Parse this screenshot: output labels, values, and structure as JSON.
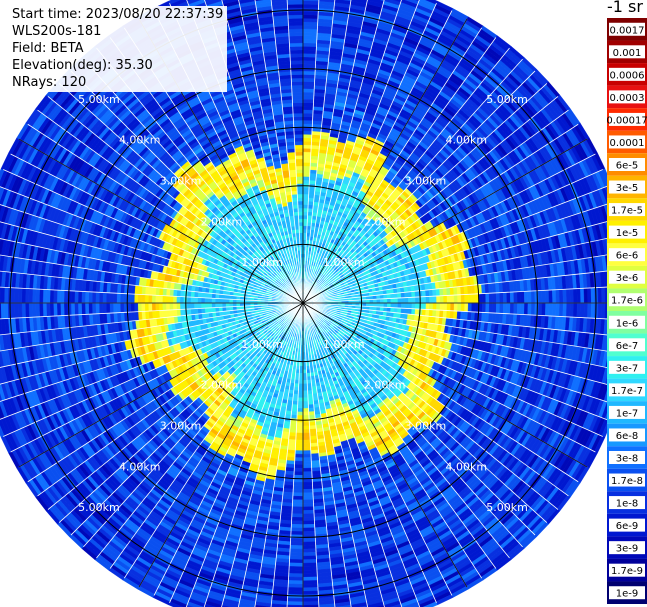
{
  "info": {
    "start_time": "Start time: 2023/08/20 22:37:39",
    "instrument": "WLS200s-181",
    "field": "Field: BETA",
    "elevation": "Elevation(deg): 35.30",
    "nrays": "NRays: 120"
  },
  "colorbar": {
    "unit": "-1 sr",
    "labels": [
      "0.0017",
      "0.001",
      "0.0006",
      "0.0003",
      "0.00017",
      "0.0001",
      "6e-5",
      "3e-5",
      "1.7e-5",
      "1e-5",
      "6e-6",
      "3e-6",
      "1.7e-6",
      "1e-6",
      "6e-7",
      "3e-7",
      "1.7e-7",
      "1e-7",
      "6e-8",
      "3e-8",
      "1.7e-8",
      "1e-8",
      "6e-9",
      "3e-9",
      "1.7e-9",
      "1e-9"
    ],
    "colors": [
      "#7f0000",
      "#a00000",
      "#c80000",
      "#e81010",
      "#ff2a00",
      "#ff5a00",
      "#ff8c00",
      "#ffb400",
      "#ffd800",
      "#fff000",
      "#ffff40",
      "#e0ff40",
      "#b0ff70",
      "#80ffa0",
      "#50ffd0",
      "#30f0f0",
      "#30d8ff",
      "#20b8ff",
      "#1898ff",
      "#1070ff",
      "#0a50f0",
      "#0830e0",
      "#0018d0",
      "#0008b8",
      "#00009a",
      "#000070"
    ]
  },
  "chart_data": {
    "type": "heatmap",
    "projection": "polar-ppi",
    "field": "BETA",
    "nrays": 120,
    "range_km": [
      0,
      5.6
    ],
    "range_rings_km": [
      1,
      2,
      3,
      4,
      5
    ],
    "ring_labels": [
      "1.00km",
      "2.00km",
      "3.00km",
      "4.00km",
      "5.00km"
    ],
    "spokes_deg": [
      0,
      30,
      60,
      90,
      120,
      150,
      180,
      210,
      240,
      270,
      300,
      330
    ],
    "color_scale": "log",
    "value_range": [
      1e-09,
      0.0017
    ],
    "pattern": {
      "inner_value": 1.7e-07,
      "aerosol_ring_km": 2.5,
      "aerosol_ring_value": 1.2e-05,
      "outer_value": 2e-08
    }
  }
}
